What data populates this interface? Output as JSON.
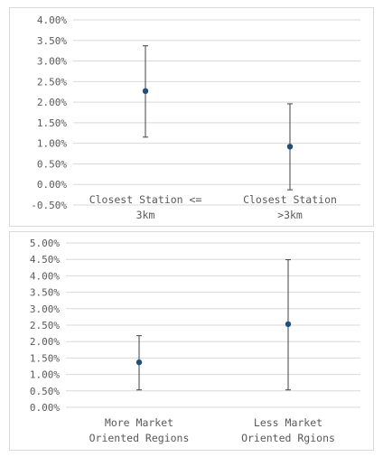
{
  "chart_data": [
    {
      "type": "scatter",
      "error_bars": true,
      "categories": [
        [
          "Closest Station <=",
          "3km"
        ],
        [
          "Closest Station",
          ">3km"
        ]
      ],
      "values": [
        2.27,
        0.92
      ],
      "lower": [
        1.15,
        -0.13
      ],
      "upper": [
        3.37,
        1.96
      ],
      "yticks": [
        "4.00%",
        "3.50%",
        "3.00%",
        "2.50%",
        "2.00%",
        "1.50%",
        "1.00%",
        "0.50%",
        "0.00%",
        "-0.50%"
      ],
      "ylim": [
        -0.5,
        4.0
      ],
      "grid": true,
      "marker_color": "#1f4e79",
      "errorbar_color": "#404040"
    },
    {
      "type": "scatter",
      "error_bars": true,
      "categories": [
        [
          "More Market",
          "Oriented Regions"
        ],
        [
          "Less Market",
          "Oriented Rgions"
        ]
      ],
      "values": [
        1.37,
        2.53
      ],
      "lower": [
        0.53,
        0.53
      ],
      "upper": [
        2.18,
        4.49
      ],
      "yticks": [
        "5.00%",
        "4.50%",
        "4.00%",
        "3.50%",
        "3.00%",
        "2.50%",
        "2.00%",
        "1.50%",
        "1.00%",
        "0.50%",
        "0.00%"
      ],
      "ylim": [
        0,
        5.0
      ],
      "grid": true,
      "marker_color": "#1f4e79",
      "errorbar_color": "#404040"
    }
  ]
}
